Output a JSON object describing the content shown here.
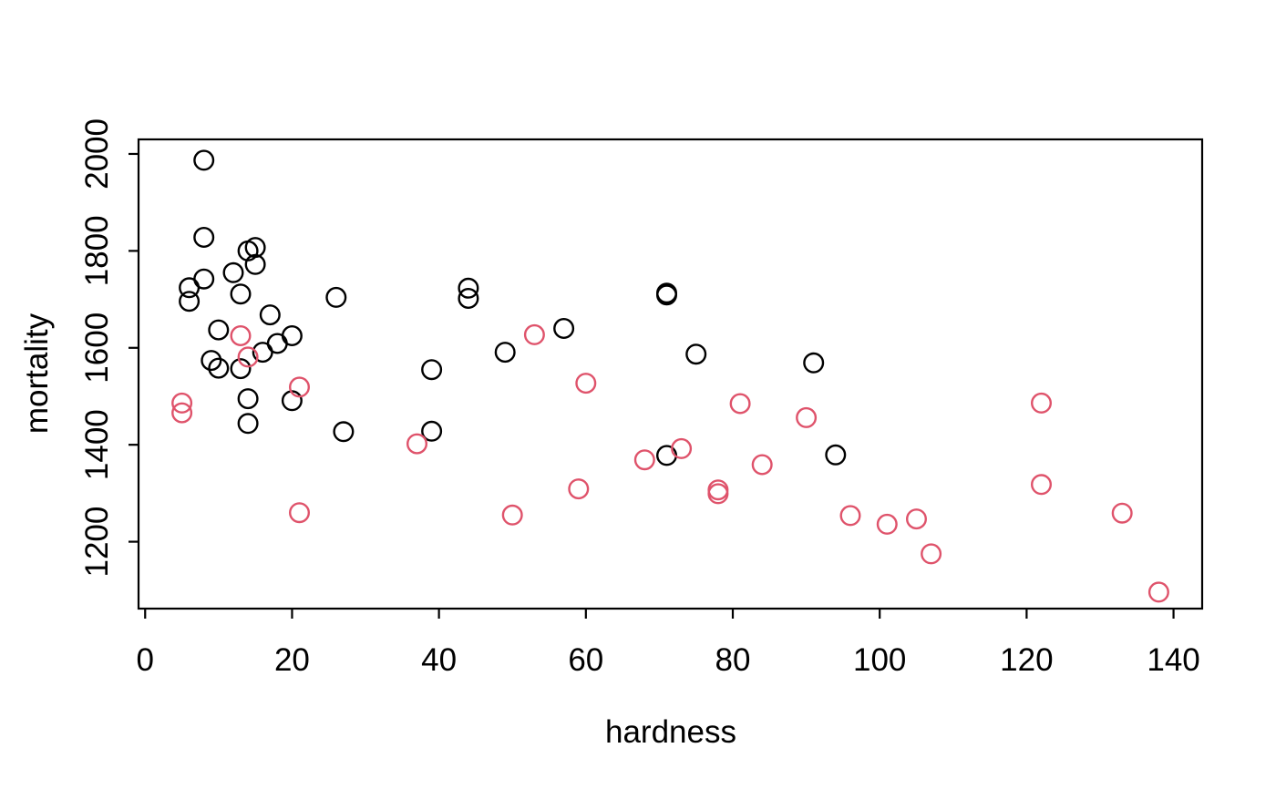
{
  "figure": {
    "background": "#ffffff",
    "foreground": "#000000"
  },
  "chart_data": {
    "type": "scatter",
    "title": "",
    "xlabel": "hardness",
    "ylabel": "mortality",
    "marker": "open-circle",
    "grid": false,
    "legend": "none",
    "x_ticks": [
      0,
      20,
      40,
      60,
      80,
      100,
      120,
      140
    ],
    "y_ticks": [
      1200,
      1400,
      1600,
      1800,
      2000
    ],
    "xlim": [
      -0.9,
      143.9
    ],
    "ylim": [
      1062,
      2030
    ],
    "series": [
      {
        "name": "black",
        "color": "#000000",
        "points": [
          [
            8,
            1987
          ],
          [
            8,
            1828
          ],
          [
            8,
            1742
          ],
          [
            6,
            1724
          ],
          [
            6,
            1696
          ],
          [
            12,
            1755
          ],
          [
            15,
            1807
          ],
          [
            14,
            1800
          ],
          [
            15,
            1772
          ],
          [
            13,
            1711
          ],
          [
            26,
            1704
          ],
          [
            17,
            1668
          ],
          [
            10,
            1637
          ],
          [
            20,
            1625
          ],
          [
            18,
            1609
          ],
          [
            16,
            1591
          ],
          [
            9,
            1574
          ],
          [
            10,
            1558
          ],
          [
            13,
            1557
          ],
          [
            14,
            1495
          ],
          [
            20,
            1491
          ],
          [
            14,
            1444
          ],
          [
            27,
            1427
          ],
          [
            39,
            1428
          ],
          [
            39,
            1555
          ],
          [
            49,
            1591
          ],
          [
            57,
            1640
          ],
          [
            44,
            1723
          ],
          [
            44,
            1702
          ],
          [
            71,
            1713
          ],
          [
            71,
            1709
          ],
          [
            75,
            1587
          ],
          [
            71,
            1378
          ],
          [
            91,
            1569
          ],
          [
            94,
            1379
          ]
        ]
      },
      {
        "name": "red",
        "color": "#DF536B",
        "points": [
          [
            13,
            1625
          ],
          [
            14,
            1581
          ],
          [
            21,
            1519
          ],
          [
            5,
            1486
          ],
          [
            5,
            1466
          ],
          [
            21,
            1260
          ],
          [
            37,
            1402
          ],
          [
            50,
            1255
          ],
          [
            53,
            1627
          ],
          [
            60,
            1527
          ],
          [
            59,
            1309
          ],
          [
            68,
            1369
          ],
          [
            73,
            1392
          ],
          [
            78,
            1307
          ],
          [
            78,
            1299
          ],
          [
            81,
            1485
          ],
          [
            84,
            1359
          ],
          [
            90,
            1456
          ],
          [
            96,
            1254
          ],
          [
            101,
            1236
          ],
          [
            105,
            1247
          ],
          [
            107,
            1175
          ],
          [
            122,
            1486
          ],
          [
            122,
            1318
          ],
          [
            133,
            1259
          ],
          [
            138,
            1096
          ]
        ]
      }
    ]
  }
}
